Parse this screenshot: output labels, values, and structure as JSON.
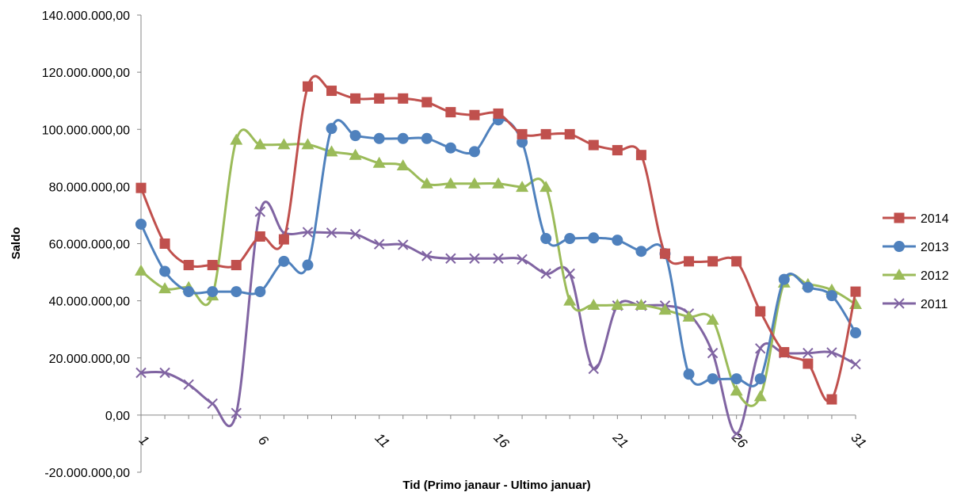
{
  "chart_data": {
    "type": "line",
    "title": "",
    "xlabel": "Tid (Primo janaur - Ultimo januar)",
    "ylabel": "Saldo",
    "ylim": [
      -20000000,
      140000000
    ],
    "yticks": [
      -20000000,
      0,
      20000000,
      40000000,
      60000000,
      80000000,
      100000000,
      120000000,
      140000000
    ],
    "ytick_labels": [
      "-20.000.000,00",
      "0,00",
      "20.000.000,00",
      "40.000.000,00",
      "60.000.000,00",
      "80.000.000,00",
      "100.000.000,00",
      "120.000.000,00",
      "140.000.000,00"
    ],
    "xlim": [
      1,
      31
    ],
    "xticks": [
      1,
      6,
      11,
      16,
      21,
      26,
      31
    ],
    "xtick_labels": [
      "1",
      "6",
      "11",
      "16",
      "21",
      "26",
      "31"
    ],
    "x": [
      1,
      2,
      3,
      4,
      5,
      6,
      7,
      8,
      9,
      10,
      11,
      12,
      13,
      14,
      15,
      16,
      17,
      18,
      19,
      20,
      21,
      22,
      23,
      24,
      25,
      26,
      27,
      28,
      29,
      30,
      31
    ],
    "smooth": true,
    "grid": false,
    "legend_position": "right",
    "series": [
      {
        "name": "2014",
        "color": "#c0504d",
        "marker": "square",
        "values": [
          79500000,
          60000000,
          52500000,
          52500000,
          52500000,
          62500000,
          61500000,
          115000000,
          113500000,
          110800000,
          110800000,
          110800000,
          109500000,
          106000000,
          105000000,
          105500000,
          98300000,
          98300000,
          98300000,
          94500000,
          92700000,
          91000000,
          56500000,
          53800000,
          53800000,
          53800000,
          36300000,
          22000000,
          18000000,
          5500000,
          43200000
        ]
      },
      {
        "name": "2013",
        "color": "#4f81bd",
        "marker": "circle",
        "values": [
          66800000,
          50300000,
          43200000,
          43200000,
          43200000,
          43200000,
          53800000,
          52500000,
          100300000,
          97800000,
          96800000,
          96800000,
          96800000,
          93500000,
          92200000,
          103300000,
          95500000,
          61800000,
          61800000,
          62000000,
          61200000,
          57300000,
          56500000,
          14300000,
          12700000,
          12700000,
          12700000,
          47500000,
          44700000,
          41800000,
          28800000
        ]
      },
      {
        "name": "2012",
        "color": "#9bbb59",
        "marker": "triangle",
        "values": [
          50500000,
          44300000,
          44700000,
          41800000,
          96300000,
          94700000,
          94700000,
          94700000,
          92200000,
          91000000,
          88200000,
          87300000,
          81000000,
          81000000,
          81000000,
          81000000,
          79800000,
          79800000,
          40000000,
          38500000,
          38500000,
          38500000,
          36800000,
          34400000,
          33300000,
          8500000,
          6500000,
          46300000,
          45800000,
          43800000,
          38800000
        ]
      },
      {
        "name": "2011",
        "color": "#8064a2",
        "marker": "x",
        "values": [
          14800000,
          14800000,
          10700000,
          4000000,
          700000,
          71200000,
          63800000,
          64000000,
          63800000,
          63300000,
          59800000,
          59600000,
          55700000,
          54800000,
          54800000,
          54800000,
          54500000,
          49500000,
          49500000,
          16200000,
          38300000,
          38300000,
          38300000,
          35500000,
          21700000,
          -6500000,
          23300000,
          21700000,
          21700000,
          21900000,
          17800000
        ]
      }
    ]
  }
}
